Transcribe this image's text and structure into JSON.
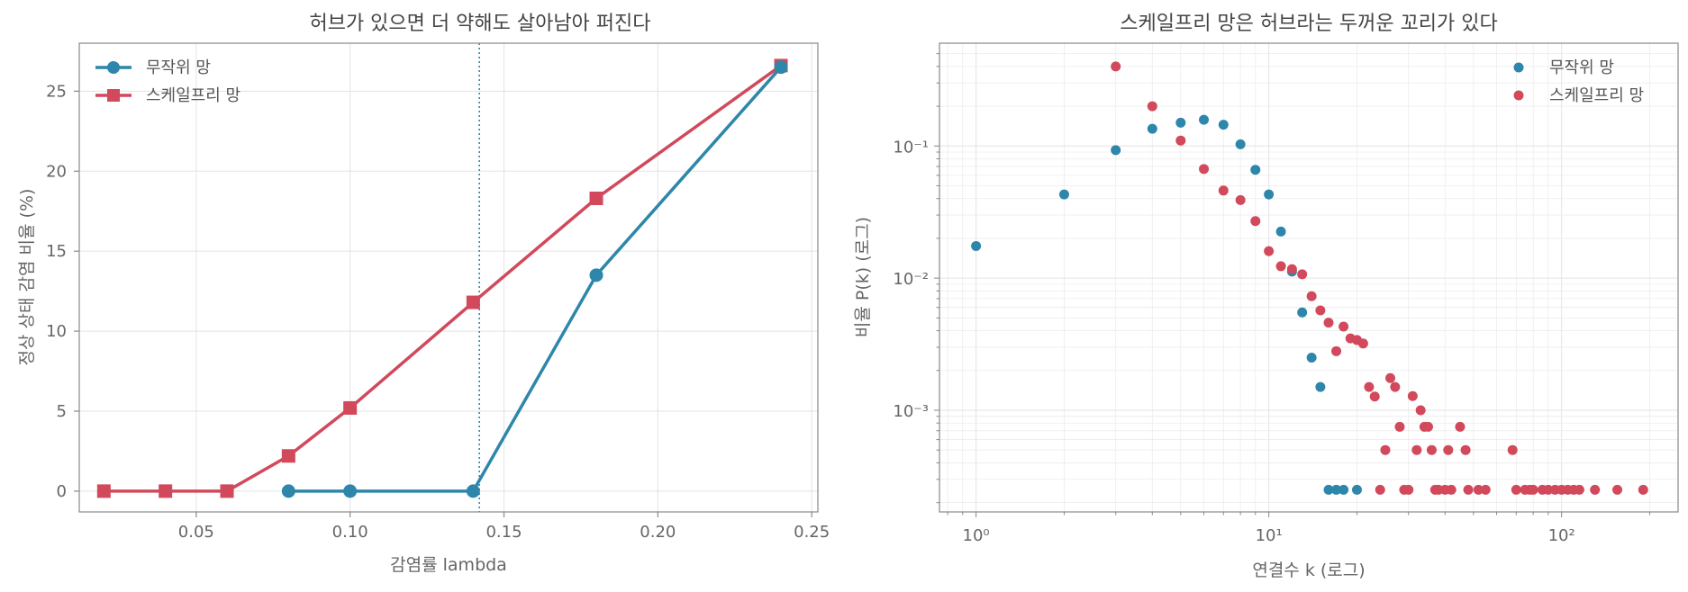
{
  "colors": {
    "random": "#2e86ab",
    "scalefree": "#d1495b"
  },
  "chart_data": [
    {
      "type": "line",
      "title": "허브가 있으면 더 약해도 살아남아 퍼진다",
      "xlabel": "감염률 lambda",
      "ylabel": "정상 상태 감염 비율 (%)",
      "xlim": [
        0.012,
        0.252
      ],
      "ylim": [
        -1.3,
        28.0
      ],
      "xticks": [
        0.05,
        0.1,
        0.15,
        0.2,
        0.25
      ],
      "xtick_labels": [
        "0.05",
        "0.10",
        "0.15",
        "0.20",
        "0.25"
      ],
      "yticks": [
        0,
        5,
        10,
        15,
        20,
        25
      ],
      "ytick_labels": [
        "0",
        "5",
        "10",
        "15",
        "20",
        "25"
      ],
      "grid": true,
      "legend": "top-left",
      "threshold_line_x": 0.142,
      "series": [
        {
          "name": "무작위 망",
          "marker": "circle",
          "x": [
            0.08,
            0.1,
            0.14,
            0.18,
            0.24
          ],
          "y": [
            0.0,
            0.0,
            0.0,
            13.5,
            26.5
          ]
        },
        {
          "name": "스케일프리 망",
          "marker": "square",
          "x": [
            0.02,
            0.04,
            0.06,
            0.08,
            0.1,
            0.14,
            0.18,
            0.24
          ],
          "y": [
            0.0,
            0.0,
            0.0,
            2.2,
            5.2,
            11.8,
            18.3,
            26.6
          ]
        }
      ]
    },
    {
      "type": "scatter",
      "title": "스케일프리 망은 허브라는 두꺼운 꼬리가 있다",
      "xlabel": "연결수 k (로그)",
      "ylabel": "비율 P(k) (로그)",
      "xscale": "log",
      "yscale": "log",
      "xlim": [
        0.75,
        250
      ],
      "ylim": [
        0.00017,
        0.6
      ],
      "xtick_labels": [
        "10⁰",
        "10¹",
        "10²"
      ],
      "ytick_labels": [
        "10⁻³",
        "10⁻²",
        "10⁻¹"
      ],
      "grid": true,
      "legend": "top-right",
      "series": [
        {
          "name": "무작위 망",
          "x": [
            1,
            2,
            3,
            4,
            5,
            6,
            7,
            8,
            9,
            10,
            11,
            12,
            13,
            14,
            15,
            16,
            17,
            18,
            20
          ],
          "y": [
            0.0175,
            0.043,
            0.093,
            0.135,
            0.15,
            0.158,
            0.145,
            0.103,
            0.066,
            0.043,
            0.0225,
            0.0112,
            0.0055,
            0.0025,
            0.0015,
            0.00025,
            0.00025,
            0.00025,
            0.00025
          ]
        },
        {
          "name": "스케일프리 망",
          "x": [
            3,
            4,
            5,
            6,
            7,
            8,
            9,
            10,
            11,
            12,
            13,
            14,
            15,
            16,
            17,
            18,
            19,
            20,
            21,
            22,
            23,
            24,
            25,
            26,
            27,
            28,
            29,
            30,
            31,
            32,
            33,
            34,
            35,
            36,
            37,
            38,
            40,
            41,
            42,
            45,
            47,
            48,
            52,
            55,
            68,
            70,
            75,
            78,
            80,
            86,
            90,
            95,
            100,
            105,
            110,
            115,
            130,
            155,
            190
          ],
          "y": [
            0.4,
            0.2,
            0.11,
            0.067,
            0.046,
            0.039,
            0.027,
            0.016,
            0.0123,
            0.0117,
            0.0107,
            0.0073,
            0.0057,
            0.0046,
            0.0028,
            0.0043,
            0.0035,
            0.0034,
            0.0032,
            0.0015,
            0.00127,
            0.00025,
            0.0005,
            0.00175,
            0.0015,
            0.00075,
            0.00025,
            0.00025,
            0.00128,
            0.0005,
            0.001,
            0.00075,
            0.00075,
            0.0005,
            0.00025,
            0.00025,
            0.00025,
            0.0005,
            0.00025,
            0.00075,
            0.0005,
            0.00025,
            0.00025,
            0.00025,
            0.0005,
            0.00025,
            0.00025,
            0.00025,
            0.00025,
            0.00025,
            0.00025,
            0.00025,
            0.00025,
            0.00025,
            0.00025,
            0.00025,
            0.00025,
            0.00025,
            0.00025
          ]
        }
      ]
    }
  ]
}
